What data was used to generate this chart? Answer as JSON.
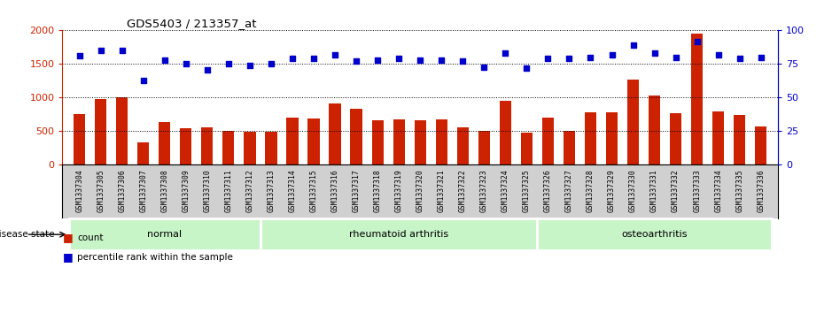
{
  "title": "GDS5403 / 213357_at",
  "samples": [
    "GSM1337304",
    "GSM1337305",
    "GSM1337306",
    "GSM1337307",
    "GSM1337308",
    "GSM1337309",
    "GSM1337310",
    "GSM1337311",
    "GSM1337312",
    "GSM1337313",
    "GSM1337314",
    "GSM1337315",
    "GSM1337316",
    "GSM1337317",
    "GSM1337318",
    "GSM1337319",
    "GSM1337320",
    "GSM1337321",
    "GSM1337322",
    "GSM1337323",
    "GSM1337324",
    "GSM1337325",
    "GSM1337326",
    "GSM1337327",
    "GSM1337328",
    "GSM1337329",
    "GSM1337330",
    "GSM1337331",
    "GSM1337332",
    "GSM1337333",
    "GSM1337334",
    "GSM1337335",
    "GSM1337336"
  ],
  "counts": [
    760,
    980,
    1010,
    330,
    640,
    550,
    560,
    500,
    490,
    490,
    700,
    690,
    910,
    840,
    670,
    680,
    670,
    680,
    560,
    500,
    950,
    480,
    700,
    510,
    780,
    780,
    1270,
    1030,
    770,
    1960,
    790,
    740,
    570
  ],
  "percentile_ranks": [
    81,
    85,
    85,
    63,
    78,
    75,
    71,
    75,
    74,
    75,
    79,
    79,
    82,
    77,
    78,
    79,
    78,
    78,
    77,
    73,
    83,
    72,
    79,
    79,
    80,
    82,
    89,
    83,
    80,
    92,
    82,
    79,
    80
  ],
  "disease_groups": [
    {
      "label": "normal",
      "start": 0,
      "end": 9
    },
    {
      "label": "rheumatoid arthritis",
      "start": 9,
      "end": 22
    },
    {
      "label": "osteoarthritis",
      "start": 22,
      "end": 33
    }
  ],
  "bar_color": "#cc2200",
  "dot_color": "#0000cc",
  "group_bg_light": "#c8f5c8",
  "group_bg_dark": "#55cc55",
  "ticklabel_bg": "#d0d0d0",
  "left_ylim": [
    0,
    2000
  ],
  "right_ylim": [
    0,
    100
  ],
  "left_yticks": [
    0,
    500,
    1000,
    1500,
    2000
  ],
  "right_yticks": [
    0,
    25,
    50,
    75,
    100
  ],
  "left_tick_color": "#cc2200",
  "right_tick_color": "#0000cc",
  "title_fontsize": 9.5
}
